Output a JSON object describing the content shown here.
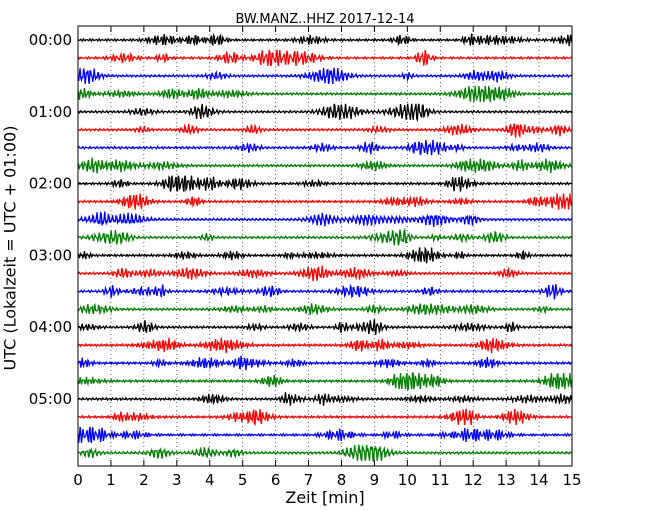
{
  "chart_data": {
    "type": "line",
    "title": "BW.MANZ..HHZ 2017-12-14",
    "xlabel": "Zeit  [min]",
    "ylabel": "UTC (Lokalzeit = UTC + 01:00)",
    "xlim": [
      0,
      15
    ],
    "x_ticks": [
      0,
      1,
      2,
      3,
      4,
      5,
      6,
      7,
      8,
      9,
      10,
      11,
      12,
      13,
      14,
      15
    ],
    "x_tick_labels": [
      "0",
      "1",
      "2",
      "3",
      "4",
      "5",
      "6",
      "7",
      "8",
      "9",
      "10",
      "11",
      "12",
      "13",
      "14",
      "15"
    ],
    "y_tick_labels": [
      "00:00",
      "01:00",
      "02:00",
      "03:00",
      "04:00",
      "05:00"
    ],
    "trace_interval_minutes": 15,
    "trace_count": 24,
    "trace_colors": [
      "#000000",
      "#ff0000",
      "#0000ff",
      "#007f00"
    ],
    "grid": "vertical dotted"
  }
}
